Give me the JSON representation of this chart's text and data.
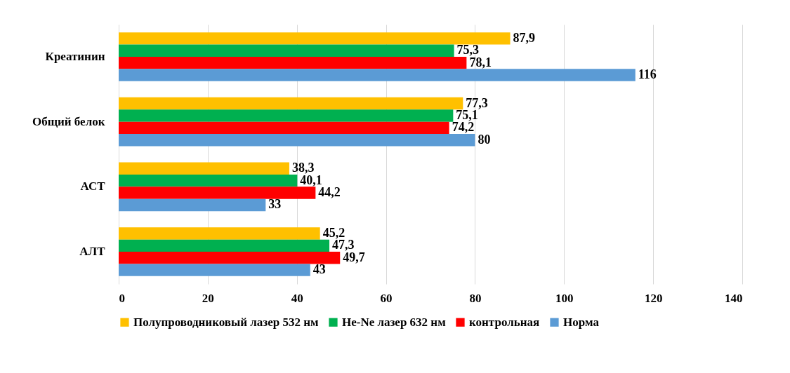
{
  "chart_data": {
    "type": "bar",
    "orientation": "horizontal",
    "categories": [
      "Креатинин",
      "Общий белок",
      "АСТ",
      "АЛТ"
    ],
    "series": [
      {
        "name": "Полупроводниковый лазер 532 нм",
        "color": "#ffc000",
        "values": [
          87.9,
          77.3,
          38.3,
          45.2
        ],
        "value_labels": [
          "87,9",
          "77,3",
          "38,3",
          "45,2"
        ]
      },
      {
        "name": "He-Ne лазер 632 нм",
        "color": "#00b050",
        "values": [
          75.3,
          75.1,
          40.1,
          47.3
        ],
        "value_labels": [
          "75,3",
          "75,1",
          "40,1",
          "47,3"
        ]
      },
      {
        "name": "контрольная",
        "color": "#ff0000",
        "values": [
          78.1,
          74.2,
          44.2,
          49.7
        ],
        "value_labels": [
          "78,1",
          "74,2",
          "44,2",
          "49,7"
        ]
      },
      {
        "name": "Норма",
        "color": "#5b9bd5",
        "values": [
          116,
          80,
          33,
          43
        ],
        "value_labels": [
          "116",
          "80",
          "33",
          "43"
        ]
      }
    ],
    "xlim": [
      0,
      140
    ],
    "xticks": [
      0,
      20,
      40,
      60,
      80,
      100,
      120,
      140
    ],
    "grid": "x",
    "legend": "bottom"
  }
}
